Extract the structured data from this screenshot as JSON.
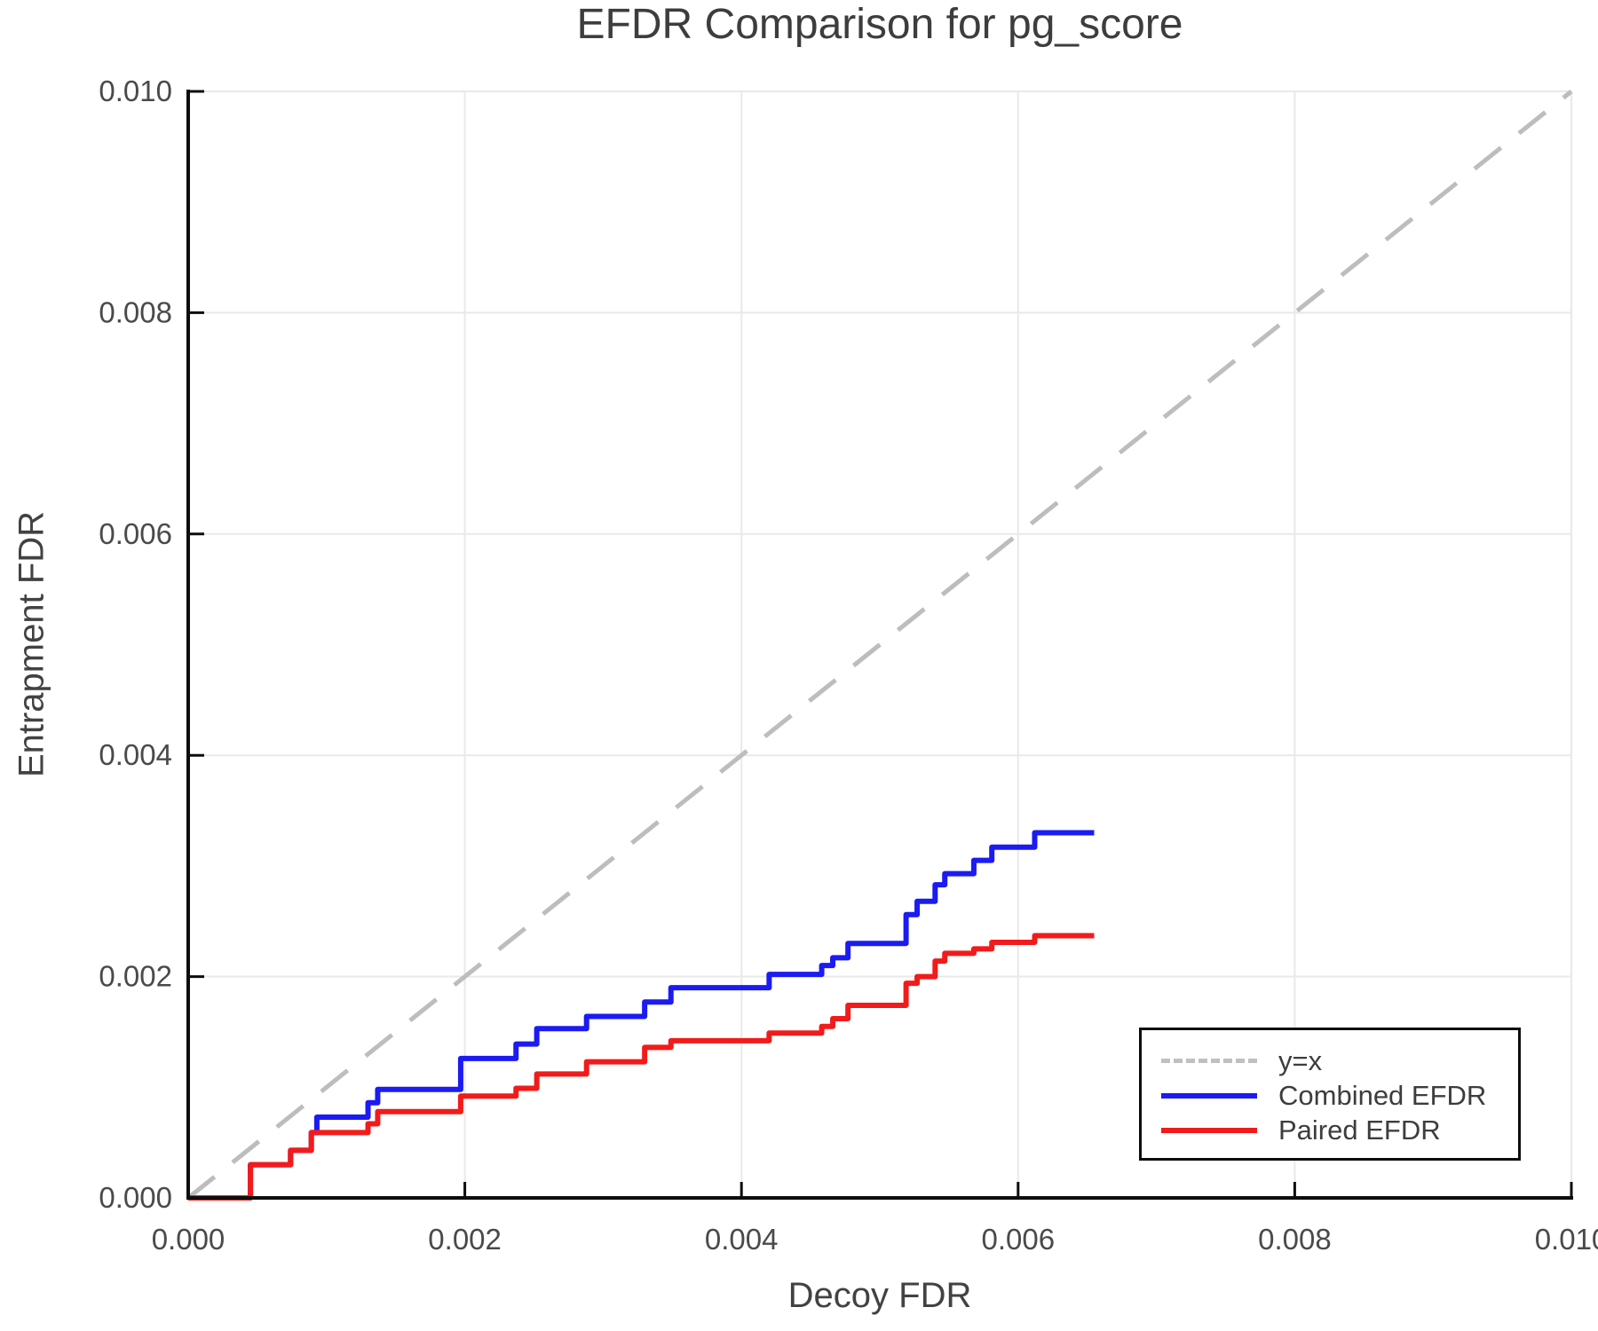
{
  "chart_data": {
    "type": "line",
    "title": "EFDR Comparison for pg_score",
    "xlabel": "Decoy FDR",
    "ylabel": "Entrapment FDR",
    "xlim": [
      0.0,
      0.01
    ],
    "ylim": [
      0.0,
      0.01
    ],
    "grid": true,
    "x_ticks": [
      0.0,
      0.002,
      0.004,
      0.006,
      0.008,
      0.01
    ],
    "x_tick_labels": [
      "0.000",
      "0.002",
      "0.004",
      "0.006",
      "0.008",
      "0.010"
    ],
    "y_ticks": [
      0.0,
      0.002,
      0.004,
      0.006,
      0.008,
      0.01
    ],
    "y_tick_labels": [
      "0.000",
      "0.002",
      "0.004",
      "0.006",
      "0.008",
      "0.010"
    ],
    "legend_position": "lower right",
    "reference_line": {
      "label": "y=x",
      "from": [
        0.0,
        0.0
      ],
      "to": [
        0.01,
        0.01
      ],
      "color": "#bdbdbd",
      "style": "dashed"
    },
    "series": [
      {
        "name": "Combined EFDR",
        "color": "#1b1bf2",
        "step": true,
        "x_end": 0.00655,
        "points": [
          [
            0.0,
            0.0
          ],
          [
            0.00045,
            0.0003
          ],
          [
            0.00074,
            0.00043
          ],
          [
            0.00089,
            0.00059
          ],
          [
            0.00093,
            0.00073
          ],
          [
            0.0013,
            0.00086
          ],
          [
            0.00137,
            0.00098
          ],
          [
            0.00197,
            0.00126
          ],
          [
            0.00237,
            0.00139
          ],
          [
            0.00252,
            0.00153
          ],
          [
            0.00288,
            0.00164
          ],
          [
            0.0033,
            0.00177
          ],
          [
            0.00349,
            0.0019
          ],
          [
            0.0042,
            0.00202
          ],
          [
            0.00458,
            0.0021
          ],
          [
            0.00466,
            0.00217
          ],
          [
            0.00477,
            0.0023
          ],
          [
            0.00519,
            0.00256
          ],
          [
            0.00527,
            0.00268
          ],
          [
            0.0054,
            0.00283
          ],
          [
            0.00547,
            0.00293
          ],
          [
            0.00568,
            0.00305
          ],
          [
            0.00581,
            0.00317
          ],
          [
            0.00612,
            0.0033
          ]
        ]
      },
      {
        "name": "Paired EFDR",
        "color": "#f21b1b",
        "step": true,
        "x_end": 0.00655,
        "points": [
          [
            0.0,
            0.0
          ],
          [
            0.00045,
            0.0003
          ],
          [
            0.00074,
            0.00043
          ],
          [
            0.00089,
            0.00059
          ],
          [
            0.0013,
            0.00067
          ],
          [
            0.00137,
            0.00078
          ],
          [
            0.00197,
            0.00092
          ],
          [
            0.00237,
            0.00099
          ],
          [
            0.00252,
            0.00112
          ],
          [
            0.00288,
            0.00123
          ],
          [
            0.0033,
            0.00136
          ],
          [
            0.00349,
            0.00142
          ],
          [
            0.0042,
            0.00149
          ],
          [
            0.00458,
            0.00155
          ],
          [
            0.00466,
            0.00162
          ],
          [
            0.00477,
            0.00174
          ],
          [
            0.00519,
            0.00194
          ],
          [
            0.00527,
            0.002
          ],
          [
            0.0054,
            0.00214
          ],
          [
            0.00547,
            0.00221
          ],
          [
            0.00568,
            0.00225
          ],
          [
            0.00581,
            0.00231
          ],
          [
            0.00612,
            0.00237
          ]
        ]
      }
    ]
  },
  "legend": {
    "items": [
      {
        "label": "y=x",
        "color": "#c0c0c0",
        "dashed": true
      },
      {
        "label": "Combined EFDR",
        "color": "#1b1bf2",
        "dashed": false
      },
      {
        "label": "Paired EFDR",
        "color": "#f21b1b",
        "dashed": false
      }
    ]
  },
  "colors": {
    "grid": "#e9e9e9",
    "spine": "#0d0d0d",
    "tick_text": "#4a4a4a",
    "title_text": "#3d3d3d"
  }
}
